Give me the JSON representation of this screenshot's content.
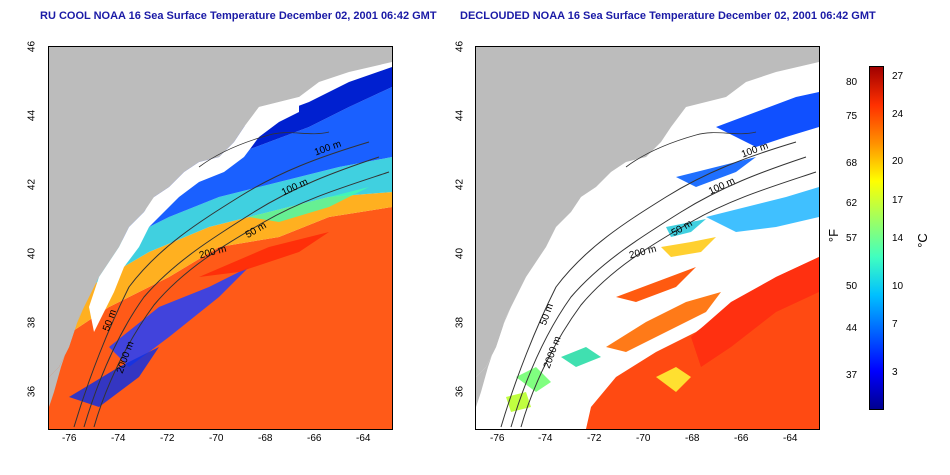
{
  "titles": {
    "left": "RU COOL NOAA 16 Sea Surface Temperature December 02, 2001 06:42 GMT",
    "right": "DECLOUDED NOAA 16 Sea Surface Temperature December 02, 2001 06:42 GMT"
  },
  "lat_ticks": [
    "46",
    "44",
    "42",
    "40",
    "38",
    "36"
  ],
  "lon_ticks": [
    "-76",
    "-74",
    "-72",
    "-70",
    "-68",
    "-66",
    "-64"
  ],
  "contour_labels": [
    "50 m",
    "100 m",
    "200 m",
    "2000 m",
    "100 m"
  ],
  "colorbar": {
    "fahrenheit_label": "°F",
    "celsius_label": "°C",
    "fahrenheit_ticks": [
      "80",
      "75",
      "68",
      "62",
      "57",
      "50",
      "44",
      "37"
    ],
    "celsius_ticks": [
      "27",
      "24",
      "20",
      "17",
      "14",
      "10",
      "7",
      "3"
    ],
    "gradient_colors": [
      "#00008f",
      "#0000ff",
      "#0060ff",
      "#00c0ff",
      "#40ffc0",
      "#a0ff60",
      "#ffff00",
      "#ff9000",
      "#ff3000",
      "#a00000"
    ]
  },
  "colors": {
    "land": "#bcbcbc",
    "title": "#1a1aa6",
    "contour": "#333333"
  }
}
